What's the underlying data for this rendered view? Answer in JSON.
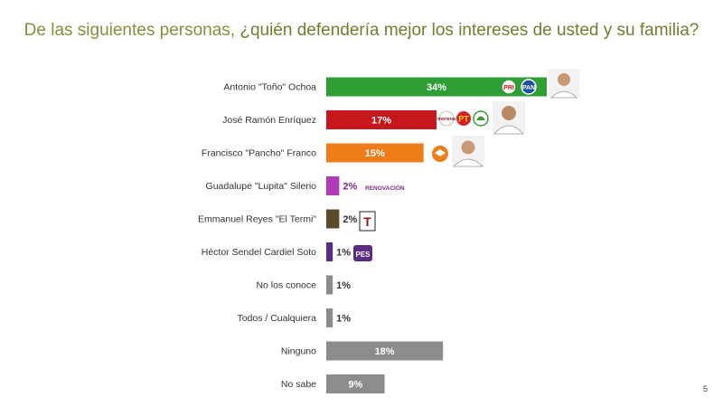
{
  "title": {
    "plain": "De las siguientes personas, ",
    "question": "¿quién defendería mejor los intereses de usted y su familia?"
  },
  "page_number": "5",
  "logos": {
    "pri": "PRI",
    "pan": "PAN",
    "morena": "morena",
    "pt": "PT",
    "renovacion": "RENOVACIÓN",
    "t": "T",
    "pes": "PES"
  },
  "chart_data": {
    "type": "bar",
    "orientation": "horizontal",
    "title": "De las siguientes personas, ¿quién defendería mejor los intereses de usted y su familia?",
    "xlim": [
      0,
      34
    ],
    "grid": false,
    "legend": "none",
    "categories": [
      "Antonio \"Toño\" Ochoa",
      "José Ramón Enríquez",
      "Francisco \"Pancho\" Franco",
      "Guadalupe \"Lupita\" Silerio",
      "Emmanuel Reyes \"El Termi\"",
      "Héctor Sendel Cardiel Soto",
      "No los conoce",
      "Todos / Cualquiera",
      "Ninguno",
      "No sabe"
    ],
    "values": [
      34,
      17,
      15,
      2,
      2,
      1,
      1,
      1,
      18,
      9
    ],
    "value_labels": [
      "34%",
      "17%",
      "15%",
      "2%",
      "2%",
      "1%",
      "1%",
      "1%",
      "18%",
      "9%"
    ],
    "colors": [
      "#2e9e35",
      "#c8161d",
      "#ef7d1a",
      "#b03ab8",
      "#5c4a2a",
      "#5b2c83",
      "#8c8c8c",
      "#8c8c8c",
      "#8c8c8c",
      "#8c8c8c"
    ],
    "label_colors": [
      "#ffffff",
      "#ffffff",
      "#ffffff",
      "#7a2a85",
      "#333333",
      "#333333",
      "#333333",
      "#333333",
      "#ffffff",
      "#ffffff"
    ]
  }
}
